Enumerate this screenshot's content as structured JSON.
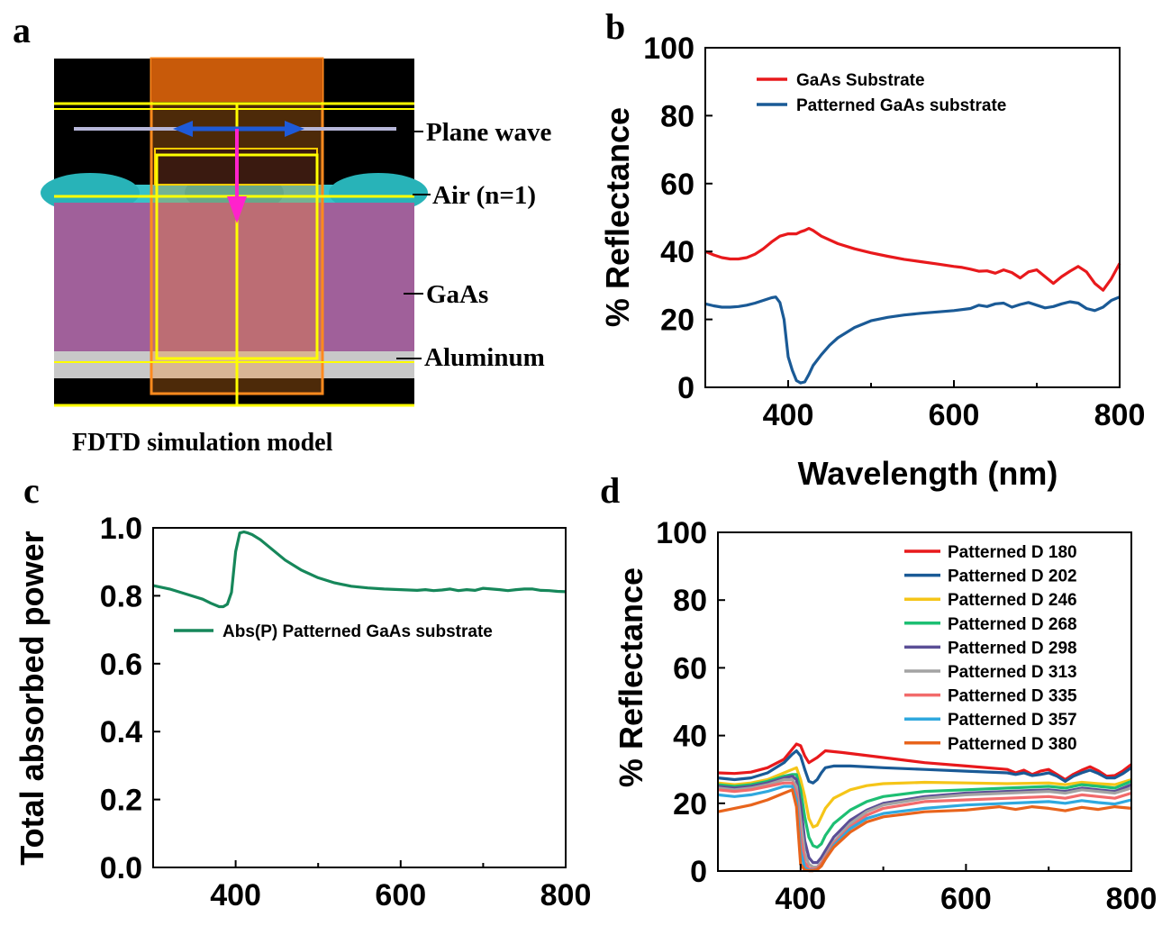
{
  "panels": {
    "a": {
      "letter": "a",
      "caption": "FDTD simulation model",
      "labels": [
        "Plane wave",
        "Air (n=1)",
        "GaAs",
        "Aluminum"
      ]
    },
    "b": {
      "letter": "b"
    },
    "c": {
      "letter": "c"
    },
    "d": {
      "letter": "d"
    }
  },
  "chart_data": [
    {
      "id": "b",
      "type": "line",
      "xlabel": "Wavelength (nm)",
      "ylabel": "% Reflectance",
      "xlim": [
        300,
        800
      ],
      "ylim": [
        0,
        100
      ],
      "xticks": [
        400,
        600,
        800
      ],
      "yticks": [
        0,
        20,
        40,
        60,
        80,
        100
      ],
      "legend_position": "top-left",
      "series": [
        {
          "name": "GaAs  Substrate",
          "color": "#e8191c",
          "x": [
            300,
            310,
            320,
            330,
            340,
            350,
            360,
            370,
            380,
            390,
            400,
            410,
            415,
            420,
            425,
            430,
            440,
            460,
            480,
            500,
            520,
            540,
            560,
            580,
            600,
            610,
            620,
            630,
            640,
            650,
            660,
            670,
            680,
            690,
            700,
            710,
            720,
            730,
            740,
            750,
            760,
            770,
            780,
            790,
            800
          ],
          "y": [
            40,
            39,
            38.2,
            37.8,
            37.8,
            38.2,
            39.2,
            40.8,
            42.8,
            44.5,
            45.2,
            45.2,
            45.8,
            46.2,
            46.8,
            46.2,
            44.5,
            42.3,
            40.8,
            39.6,
            38.6,
            37.7,
            37,
            36.3,
            35.6,
            35.3,
            34.8,
            34.2,
            34.3,
            33.6,
            34.6,
            33.8,
            32.2,
            34,
            34.6,
            32.6,
            30.6,
            32.6,
            34.2,
            35.6,
            34,
            30.6,
            28.6,
            32,
            36.5
          ]
        },
        {
          "name": "Patterned  GaAs substrate",
          "color": "#1a5a96",
          "x": [
            300,
            310,
            320,
            330,
            340,
            350,
            360,
            370,
            380,
            385,
            390,
            395,
            400,
            405,
            410,
            415,
            420,
            425,
            430,
            440,
            450,
            460,
            480,
            500,
            520,
            540,
            560,
            580,
            600,
            620,
            630,
            640,
            650,
            660,
            670,
            680,
            690,
            700,
            710,
            720,
            730,
            740,
            750,
            760,
            770,
            780,
            790,
            800
          ],
          "y": [
            24.6,
            24,
            23.6,
            23.6,
            23.8,
            24.2,
            24.8,
            25.6,
            26.4,
            26.6,
            25,
            20,
            9,
            5,
            2,
            1.3,
            1.6,
            3.8,
            6.4,
            9.6,
            12.4,
            14.6,
            17.6,
            19.6,
            20.6,
            21.3,
            21.8,
            22.2,
            22.6,
            23.2,
            24.2,
            23.8,
            24.6,
            24.8,
            23.6,
            24.4,
            25,
            24.2,
            23.4,
            23.8,
            24.6,
            25.2,
            24.8,
            23.2,
            22.6,
            23.6,
            25.6,
            26.6
          ]
        }
      ]
    },
    {
      "id": "c",
      "type": "line",
      "xlabel": "",
      "ylabel": "Total absorbed power",
      "xlim": [
        300,
        800
      ],
      "ylim": [
        0,
        1
      ],
      "xticks": [
        400,
        600,
        800
      ],
      "yticks": [
        0.0,
        0.2,
        0.4,
        0.6,
        0.8,
        1.0
      ],
      "ytick_labels": [
        "0.0",
        "0.2",
        "0.4",
        "0.6",
        "0.8",
        "1.0"
      ],
      "legend_position": "middle-left",
      "series": [
        {
          "name": "Abs(P)  Patterned GaAs substrate",
          "color": "#16875a",
          "x": [
            300,
            320,
            340,
            360,
            370,
            380,
            385,
            390,
            395,
            400,
            405,
            410,
            415,
            420,
            430,
            440,
            460,
            480,
            500,
            520,
            540,
            560,
            580,
            600,
            620,
            630,
            640,
            650,
            660,
            670,
            680,
            690,
            700,
            710,
            720,
            730,
            740,
            750,
            760,
            770,
            780,
            790,
            800
          ],
          "y": [
            0.83,
            0.82,
            0.805,
            0.79,
            0.778,
            0.768,
            0.768,
            0.775,
            0.81,
            0.93,
            0.985,
            0.988,
            0.985,
            0.98,
            0.965,
            0.945,
            0.905,
            0.875,
            0.853,
            0.838,
            0.828,
            0.823,
            0.82,
            0.818,
            0.816,
            0.818,
            0.815,
            0.817,
            0.82,
            0.815,
            0.818,
            0.816,
            0.822,
            0.82,
            0.818,
            0.815,
            0.818,
            0.82,
            0.82,
            0.816,
            0.815,
            0.813,
            0.812
          ]
        }
      ]
    },
    {
      "id": "d",
      "type": "line",
      "xlabel": "",
      "ylabel": "% Reflectance",
      "xlim": [
        300,
        800
      ],
      "ylim": [
        0,
        100
      ],
      "xticks": [
        400,
        600,
        800
      ],
      "yticks": [
        0,
        20,
        40,
        60,
        80,
        100
      ],
      "legend_position": "top-right",
      "series": [
        {
          "name": "Patterned  D  180",
          "color": "#e8191c",
          "x": [
            300,
            320,
            340,
            360,
            380,
            390,
            395,
            400,
            405,
            410,
            420,
            430,
            450,
            500,
            550,
            600,
            650,
            660,
            670,
            680,
            690,
            700,
            710,
            720,
            730,
            740,
            750,
            760,
            770,
            780,
            790,
            800
          ],
          "y": [
            29,
            28.8,
            29.2,
            30.5,
            33,
            36,
            37.5,
            37,
            34,
            32,
            33.5,
            35.5,
            35,
            33.5,
            32,
            31,
            30,
            29,
            29.8,
            28.5,
            29.5,
            30,
            28.5,
            27,
            28.6,
            29.8,
            30.8,
            29.6,
            28,
            28.2,
            29.6,
            31.5
          ]
        },
        {
          "name": "Patterned  D  202",
          "color": "#1a5a96",
          "x": [
            300,
            320,
            340,
            360,
            380,
            390,
            395,
            400,
            405,
            410,
            415,
            420,
            425,
            430,
            440,
            460,
            500,
            550,
            600,
            650,
            660,
            670,
            680,
            690,
            700,
            710,
            720,
            730,
            740,
            750,
            760,
            770,
            780,
            790,
            800
          ],
          "y": [
            27.5,
            27,
            27.5,
            29,
            32,
            34.5,
            35.5,
            34,
            30,
            26.5,
            26,
            27,
            29,
            30.5,
            31,
            31,
            30.5,
            30,
            29.5,
            29,
            28.5,
            29,
            28.2,
            28.5,
            29,
            28,
            26.5,
            28,
            29,
            29.8,
            28.8,
            27.5,
            27.5,
            28.8,
            30.5
          ]
        },
        {
          "name": "Patterned  D  246",
          "color": "#f5c518",
          "x": [
            300,
            320,
            340,
            360,
            380,
            390,
            395,
            400,
            405,
            410,
            415,
            420,
            425,
            430,
            440,
            460,
            480,
            500,
            550,
            600,
            650,
            700,
            720,
            740,
            760,
            780,
            800
          ],
          "y": [
            26,
            25.5,
            26,
            27,
            29,
            30,
            30.5,
            27,
            22,
            15.5,
            13,
            13.5,
            16,
            18.5,
            21.5,
            24,
            25.2,
            25.8,
            26.2,
            26,
            25.8,
            26,
            25.5,
            26.2,
            25.8,
            25.5,
            27
          ]
        },
        {
          "name": "Patterned  D  268",
          "color": "#1dbf73",
          "x": [
            300,
            320,
            340,
            360,
            380,
            390,
            395,
            400,
            405,
            410,
            415,
            420,
            425,
            430,
            440,
            460,
            480,
            500,
            550,
            600,
            650,
            700,
            720,
            740,
            760,
            780,
            800
          ],
          "y": [
            25.5,
            25,
            25.5,
            26.5,
            28,
            28.5,
            28.5,
            24,
            16,
            10,
            7.5,
            7,
            8,
            10.5,
            14,
            18,
            20.5,
            22,
            23.5,
            24,
            24.5,
            25,
            24.5,
            25.5,
            25,
            24.5,
            26.5
          ]
        },
        {
          "name": "Patterned  D  298",
          "color": "#5b4f96",
          "x": [
            300,
            320,
            340,
            360,
            380,
            390,
            395,
            400,
            405,
            410,
            415,
            420,
            425,
            430,
            440,
            460,
            480,
            500,
            550,
            600,
            650,
            700,
            720,
            740,
            760,
            780,
            800
          ],
          "y": [
            25,
            24.5,
            25,
            26,
            27.5,
            28,
            27,
            20,
            9,
            4,
            2.5,
            2.5,
            4,
            6,
            10,
            15,
            18,
            20,
            22,
            23,
            23.5,
            24,
            23.5,
            24.5,
            24,
            23.5,
            25.5
          ]
        },
        {
          "name": "Patterned  D  313",
          "color": "#a3a3a3",
          "x": [
            300,
            320,
            340,
            360,
            380,
            390,
            395,
            400,
            405,
            410,
            415,
            420,
            425,
            430,
            440,
            460,
            480,
            500,
            550,
            600,
            650,
            700,
            720,
            740,
            760,
            780,
            800
          ],
          "y": [
            24.5,
            24,
            24.5,
            25.5,
            27,
            27,
            25,
            15,
            5,
            2,
            1.2,
            1.2,
            2.5,
            4.5,
            8.5,
            14,
            17.5,
            19.5,
            21.5,
            22.5,
            23,
            23.5,
            23,
            24,
            23.5,
            23,
            24.5
          ]
        },
        {
          "name": "Patterned  D  335",
          "color": "#f26b6b",
          "x": [
            300,
            320,
            340,
            360,
            380,
            390,
            395,
            400,
            405,
            410,
            415,
            420,
            425,
            430,
            440,
            460,
            480,
            500,
            550,
            600,
            650,
            700,
            720,
            740,
            760,
            780,
            800
          ],
          "y": [
            24,
            23.5,
            24,
            25,
            26,
            26,
            23,
            10,
            2.5,
            0.8,
            0.5,
            0.8,
            2,
            4,
            8,
            13,
            16.5,
            18.5,
            20.5,
            21,
            21.5,
            22,
            21.5,
            22.5,
            22,
            21.5,
            23
          ]
        },
        {
          "name": "Patterned  D  357",
          "color": "#2fa8de",
          "x": [
            300,
            320,
            340,
            360,
            380,
            390,
            395,
            400,
            405,
            410,
            415,
            420,
            425,
            430,
            440,
            460,
            480,
            500,
            550,
            600,
            650,
            700,
            720,
            740,
            760,
            780,
            800
          ],
          "y": [
            22.5,
            22,
            22.5,
            23.5,
            25,
            25,
            21,
            6,
            1,
            0.3,
            0.2,
            0.5,
            1.5,
            3.5,
            7.5,
            12.5,
            15.5,
            17,
            18.5,
            19.5,
            20,
            20.5,
            20,
            20.8,
            20.2,
            19.8,
            21
          ]
        },
        {
          "name": "Patterned  D  380",
          "color": "#e8641c",
          "x": [
            300,
            320,
            340,
            360,
            380,
            390,
            395,
            400,
            405,
            410,
            415,
            420,
            425,
            430,
            440,
            460,
            480,
            500,
            550,
            600,
            620,
            640,
            660,
            680,
            700,
            720,
            740,
            760,
            780,
            800
          ],
          "y": [
            17.5,
            18.5,
            19.5,
            21,
            23,
            24,
            19,
            2,
            0.3,
            0.1,
            0.1,
            0.4,
            1.5,
            3.5,
            7,
            11.5,
            14.5,
            16,
            17.5,
            18,
            18.5,
            19,
            18.2,
            19,
            18.5,
            17.8,
            18.8,
            18.2,
            19,
            18.5
          ]
        }
      ]
    }
  ]
}
